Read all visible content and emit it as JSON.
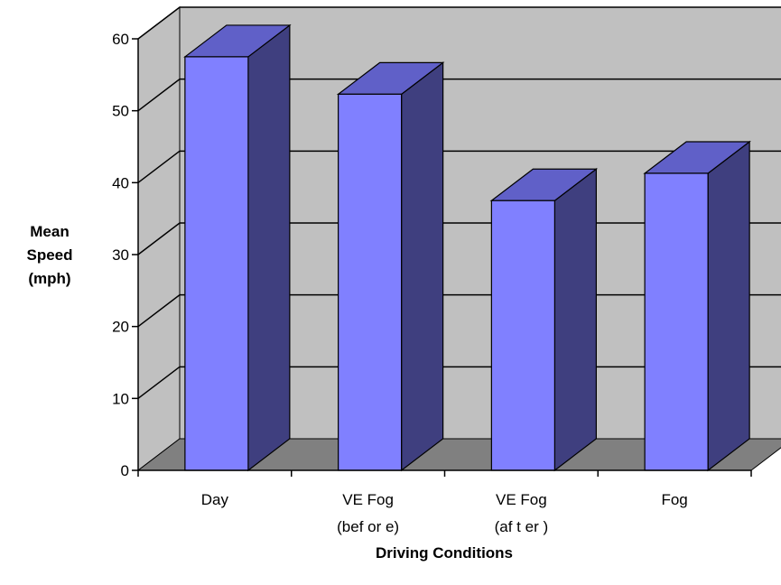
{
  "chart_data": {
    "type": "bar",
    "style": "3d-column",
    "categories": [
      [
        "Day"
      ],
      [
        "VE Fog",
        "(bef or e)"
      ],
      [
        "VE Fog",
        "(af t er )"
      ],
      [
        "Fog"
      ]
    ],
    "values": [
      57.5,
      52.3,
      37.5,
      41.3
    ],
    "title": "",
    "xlabel": "Driving Conditions",
    "ylabel": [
      "Mean",
      "Speed",
      "(mph)"
    ],
    "ylim": [
      0,
      60
    ],
    "yticks": [
      0,
      10,
      20,
      30,
      40,
      50,
      60
    ],
    "grid": true,
    "legend": "none",
    "colors": {
      "bar_front": "#8080FF",
      "bar_side": "#3F3F7F",
      "bar_top": "#6060C8",
      "wall": "#C0C0C0",
      "floor": "#808080",
      "gridline": "#000000"
    }
  }
}
